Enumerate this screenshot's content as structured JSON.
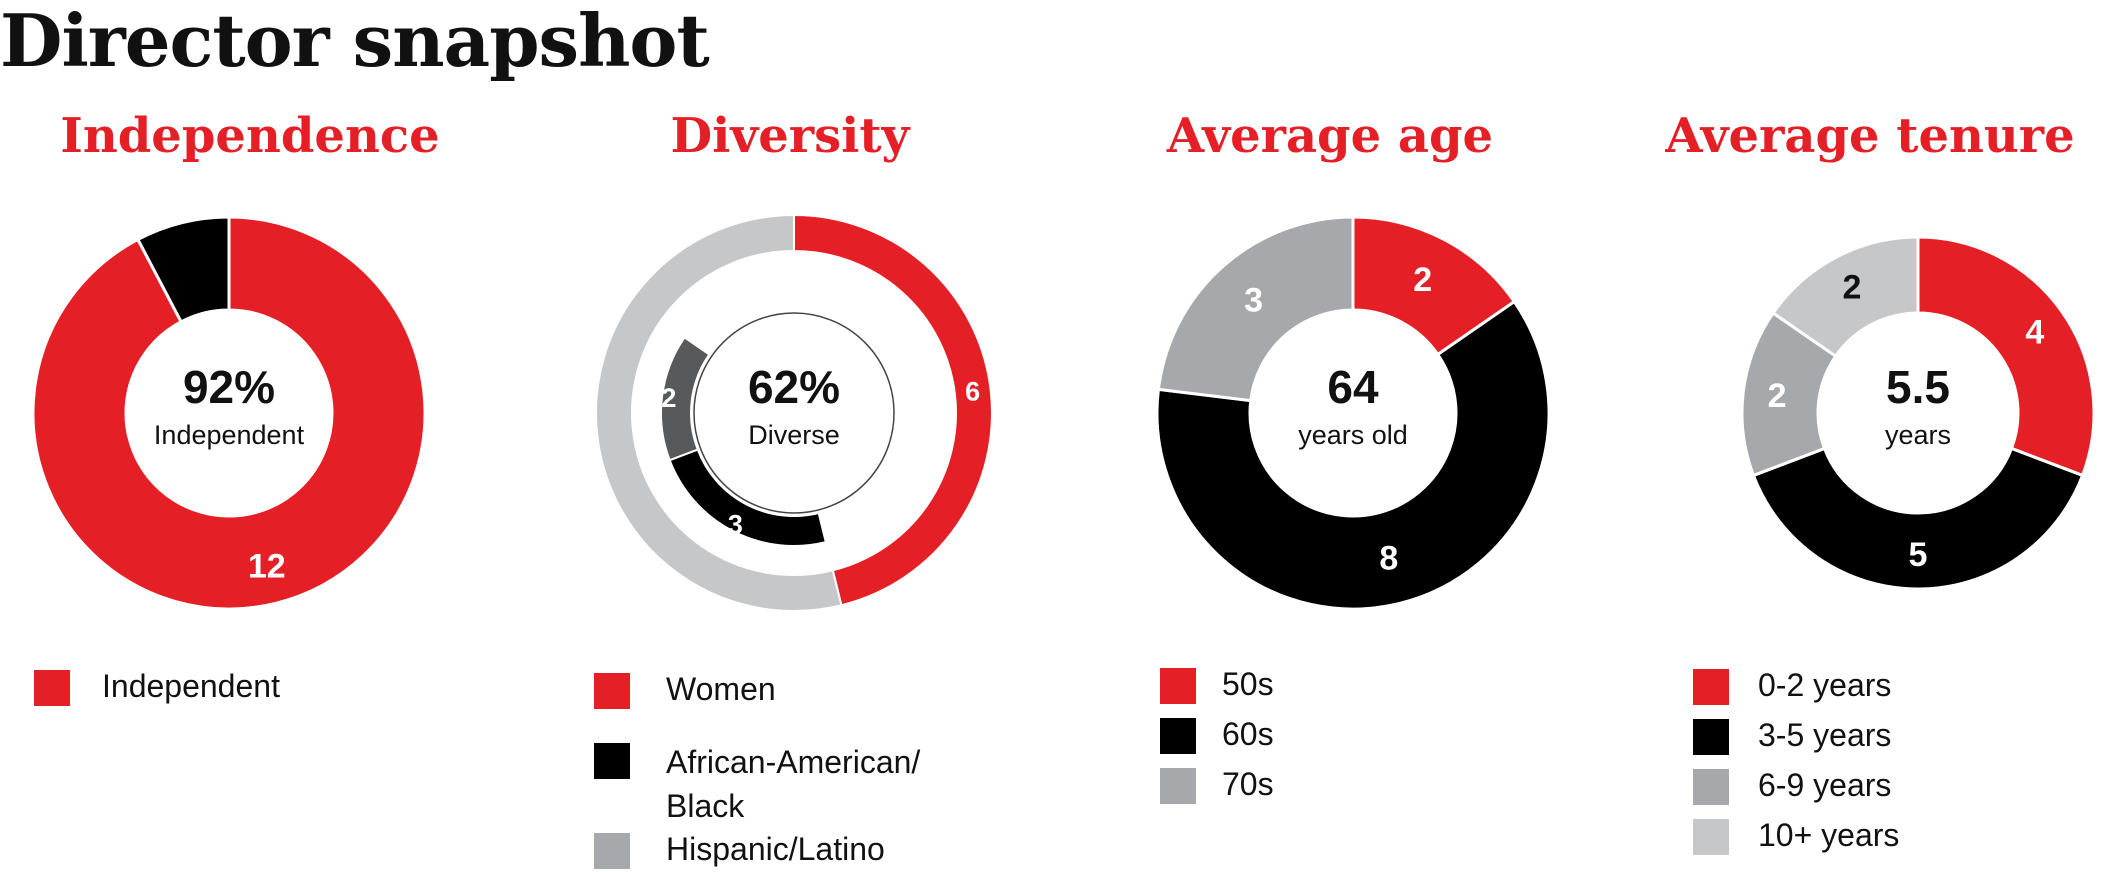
{
  "page": {
    "title": "Director snapshot"
  },
  "colors": {
    "red": "#e41f26",
    "black": "#000000",
    "gray": "#a7a8ab",
    "lightgray": "#c6c7c9",
    "darkgray": "#58595b"
  },
  "chart_data": [
    {
      "type": "pie",
      "variant": "donut",
      "title": "Independence",
      "center_value": "92%",
      "center_label": "Independent",
      "slices": [
        {
          "name": "Independent",
          "value": 12,
          "label": "12",
          "color": "#e41f26"
        },
        {
          "name": "",
          "value": 1,
          "label": "",
          "color": "#000000"
        }
      ],
      "legend": [
        {
          "label": "Independent",
          "color": "#e41f26"
        }
      ]
    },
    {
      "type": "pie",
      "variant": "nested-donut",
      "title": "Diversity",
      "center_value": "62%",
      "center_label": "Diverse",
      "total": 13,
      "outer_ring": [
        {
          "name": "Women",
          "value": 6,
          "label": "6",
          "color": "#e41f26"
        },
        {
          "name": "",
          "value": 7,
          "label": "",
          "color": "#c6c7c9"
        }
      ],
      "inner_ring": [
        {
          "name": "African-American/ Black",
          "value": 3,
          "label": "3",
          "color": "#000000"
        },
        {
          "name": "Hispanic/Latino",
          "value": 2,
          "label": "2",
          "color": "#58595b"
        }
      ],
      "legend": [
        {
          "label": "Women",
          "color": "#e41f26"
        },
        {
          "label": "African-American/ Black",
          "label_lines": [
            "African-American/",
            "Black"
          ],
          "color": "#000000"
        },
        {
          "label": "Hispanic/Latino",
          "color": "#a7a8ab"
        }
      ]
    },
    {
      "type": "pie",
      "variant": "donut",
      "title": "Average age",
      "center_value": "64",
      "center_label": "years old",
      "slices": [
        {
          "name": "50s",
          "value": 2,
          "label": "2",
          "color": "#e41f26"
        },
        {
          "name": "60s",
          "value": 8,
          "label": "8",
          "color": "#000000"
        },
        {
          "name": "70s",
          "value": 3,
          "label": "3",
          "color": "#a7a8ab"
        }
      ],
      "legend": [
        {
          "label": "50s",
          "color": "#e41f26"
        },
        {
          "label": "60s",
          "color": "#000000"
        },
        {
          "label": "70s",
          "color": "#a7a8ab"
        }
      ]
    },
    {
      "type": "pie",
      "variant": "donut",
      "title": "Average tenure",
      "center_value": "5.5",
      "center_label": "years",
      "slices": [
        {
          "name": "0-2 years",
          "value": 4,
          "label": "4",
          "color": "#e41f26"
        },
        {
          "name": "3-5 years",
          "value": 5,
          "label": "5",
          "color": "#000000"
        },
        {
          "name": "6-9 years",
          "value": 2,
          "label": "2",
          "color": "#a7a8ab"
        },
        {
          "name": "10+ years",
          "value": 2,
          "label": "2",
          "color": "#c6c7c9"
        }
      ],
      "legend": [
        {
          "label": "0-2 years",
          "color": "#e41f26"
        },
        {
          "label": "3-5 years",
          "color": "#000000"
        },
        {
          "label": "6-9 years",
          "color": "#a7a8ab"
        },
        {
          "label": "10+ years",
          "color": "#c6c7c9"
        }
      ]
    }
  ]
}
